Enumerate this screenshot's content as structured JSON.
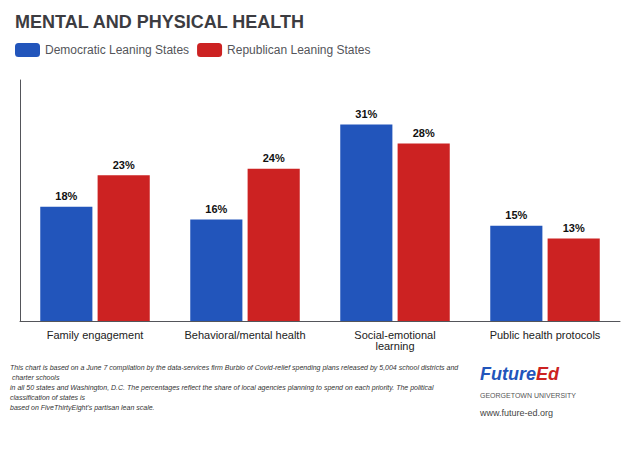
{
  "chart_data": {
    "type": "bar",
    "title": "MENTAL AND PHYSICAL HEALTH",
    "categories": [
      "Family engagement",
      "Behavioral/mental health",
      "Social-emotional\nlearning",
      "Public health protocols"
    ],
    "series": [
      {
        "name": "Democratic Leaning States",
        "color": "#2255bb",
        "values": [
          18,
          16,
          31,
          15
        ],
        "value_labels": [
          "18%",
          "16%",
          "31%",
          "15%"
        ]
      },
      {
        "name": "Republican Leaning States",
        "color": "#cc2222",
        "values": [
          23,
          24,
          28,
          13
        ],
        "value_labels": [
          "23%",
          "24%",
          "28%",
          "13%"
        ]
      }
    ],
    "ylim": [
      0,
      38
    ],
    "grid": false,
    "legend": "upper left",
    "data_labels": true,
    "tick_labels": "x",
    "annotations": [
      "This chart is based on a June 7 compilation by the data-services firm Burbio of Covid-relief spending plans released by 5,004 school districts and charter schools\nin all 50 states and Washington, D.C. The percentages reflect the share of local agencies planning to spend on each priority. The political classification of states is\nbased on FiveThirtyEight's partisan lean scale.",
      "Future",
      "Ed",
      "GEORGETOWN UNIVERSITY",
      "www.future-ed.org"
    ]
  }
}
